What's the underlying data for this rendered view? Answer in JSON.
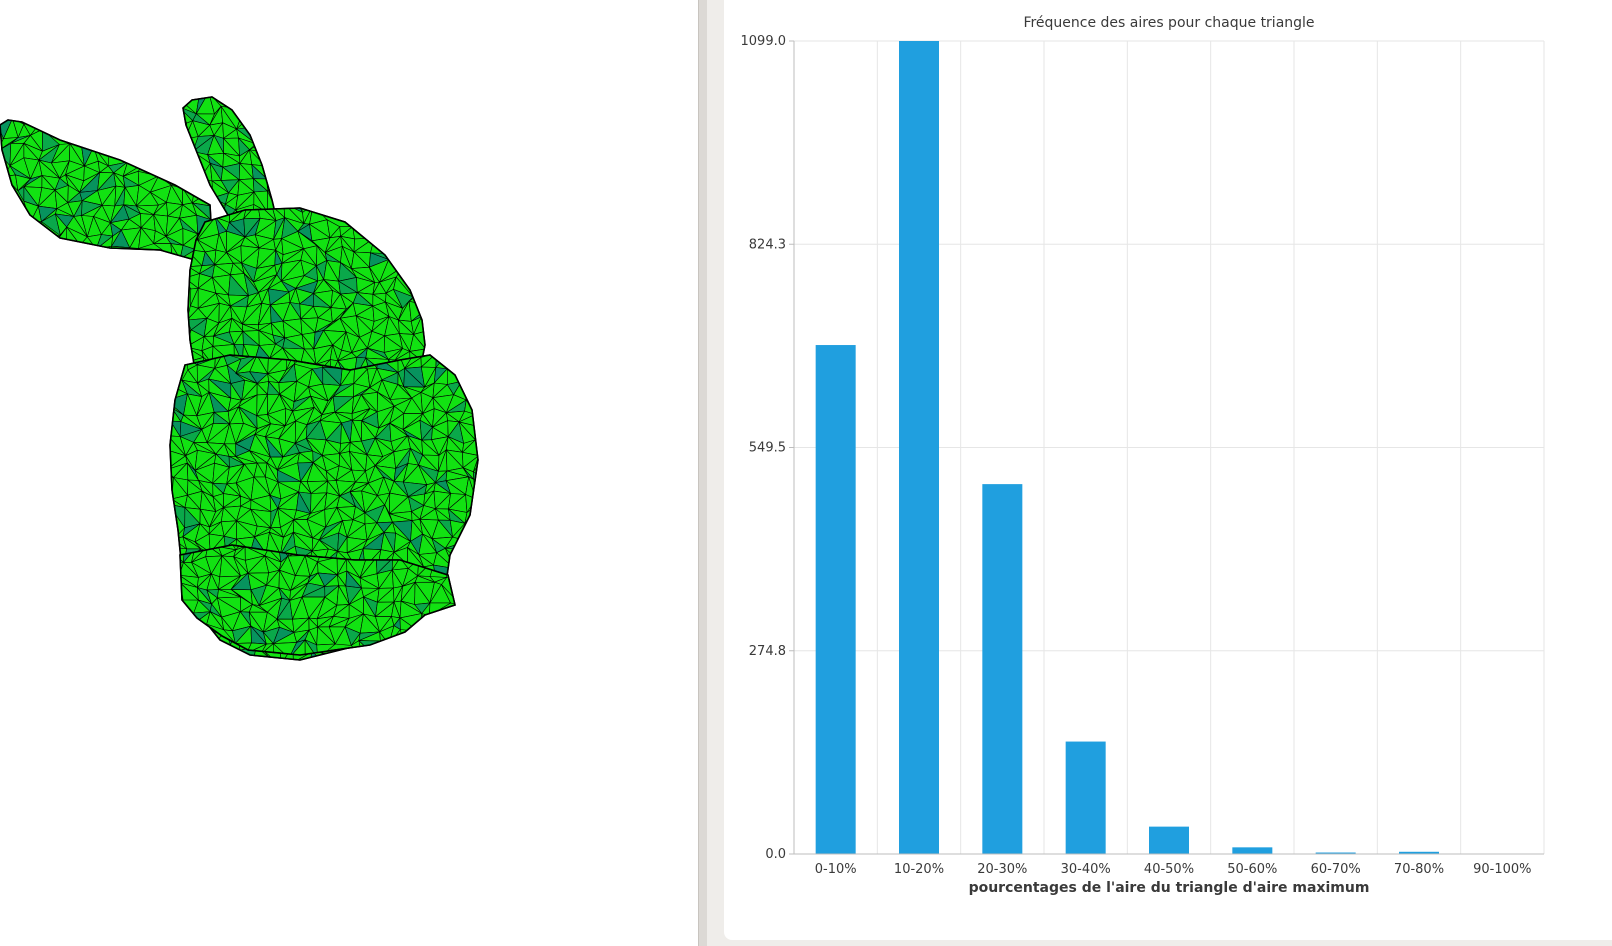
{
  "viewer": {
    "model_colors": {
      "fill": "#12e212",
      "shadow": "#0aa84a",
      "dark": "#07935e",
      "edge": "#000000"
    }
  },
  "chart_data": {
    "type": "bar",
    "title": "Fréquence des aires pour chaque triangle",
    "xlabel": "pourcentages de l'aire du triangle d'aire maximum",
    "ylabel": "",
    "categories": [
      "0-10%",
      "10-20%",
      "20-30%",
      "30-40%",
      "40-50%",
      "50-60%",
      "60-70%",
      "70-80%",
      "90-100%"
    ],
    "values": [
      688,
      1099,
      500,
      152,
      37,
      9,
      2,
      3,
      0
    ],
    "ylim": [
      0,
      1099
    ],
    "yticks": [
      "0.0",
      "274.8",
      "549.5",
      "824.3",
      "1099.0"
    ],
    "grid": true,
    "bar_color": "#209fdf"
  }
}
